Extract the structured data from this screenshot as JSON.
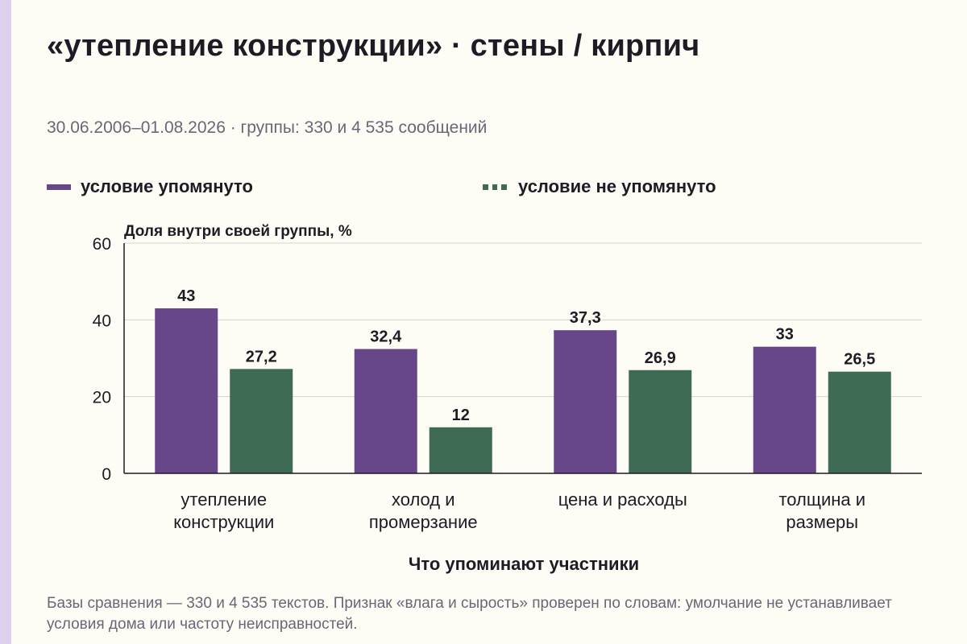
{
  "title": "«утепление конструкции» · стены / кирпич",
  "subtitle": "30.06.2006–01.08.2026 · группы: 330 и 4 535 сообщений",
  "footnote": "Базы сравнения — 330 и 4 535 текстов. Признак «влага и сырость» проверен по словам: умолчание не устанавливает условия дома или частоту неисправностей.",
  "colors": {
    "mentioned": "#67468a",
    "not_mentioned": "#3f6b55",
    "grid": "#d7d4cf",
    "axis": "#1f1b24"
  },
  "chart_data": {
    "type": "bar",
    "ylabel": "Доля внутри своей группы, %",
    "xlabel": "Что упоминают участники",
    "ylim": [
      0,
      60
    ],
    "yticks": [
      0,
      20,
      40,
      60
    ],
    "grid": true,
    "legend_position": "top",
    "categories": [
      [
        "утепление",
        "конструкции"
      ],
      [
        "холод и",
        "промерзание"
      ],
      [
        "цена и расходы"
      ],
      [
        "толщина и",
        "размеры"
      ]
    ],
    "series": [
      {
        "name": "условие упомянуто",
        "values": [
          43,
          32.4,
          37.3,
          33
        ],
        "labels": [
          "43",
          "32,4",
          "37,3",
          "33"
        ]
      },
      {
        "name": "условие не упомянуто",
        "values": [
          27.2,
          12,
          26.9,
          26.5
        ],
        "labels": [
          "27,2",
          "12",
          "26,9",
          "26,5"
        ]
      }
    ]
  }
}
